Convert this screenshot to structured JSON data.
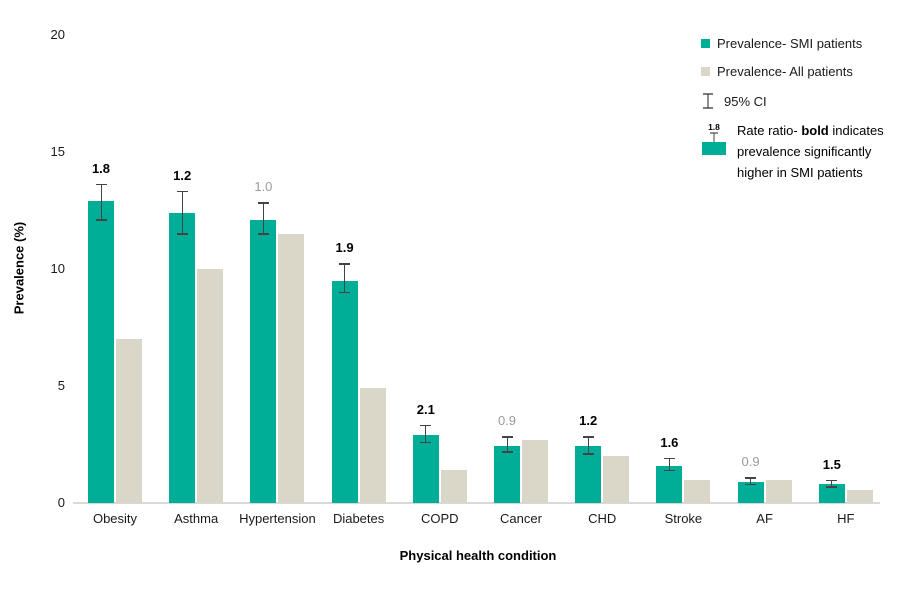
{
  "chart_data": {
    "type": "bar",
    "title": "",
    "xlabel": "Physical health condition",
    "ylabel": "Prevalence (%)",
    "ylim": [
      0,
      20
    ],
    "yticks": [
      0,
      5,
      10,
      15,
      20
    ],
    "grid": false,
    "legend_position": "top-right",
    "categories": [
      "Obesity",
      "Asthma",
      "Hypertension",
      "Diabetes",
      "COPD",
      "Cancer",
      "CHD",
      "Stroke",
      "AF",
      "HF"
    ],
    "series": [
      {
        "name": "Prevalence- SMI patients",
        "color": "#00AD96",
        "values": [
          12.9,
          12.4,
          12.1,
          9.5,
          2.9,
          2.45,
          2.45,
          1.6,
          0.9,
          0.8
        ],
        "ci_low": [
          12.1,
          11.5,
          11.5,
          9.0,
          2.6,
          2.2,
          2.1,
          1.4,
          0.8,
          0.7
        ],
        "ci_high": [
          13.6,
          13.3,
          12.8,
          10.2,
          3.3,
          2.8,
          2.8,
          1.9,
          1.05,
          0.95
        ]
      },
      {
        "name": "Prevalence- All patients",
        "color": "#DAD7C9",
        "values": [
          7.0,
          10.0,
          11.5,
          4.9,
          1.4,
          2.7,
          2.0,
          1.0,
          0.97,
          0.55
        ]
      }
    ],
    "rate_ratios": [
      {
        "label": "1.8",
        "significant": true
      },
      {
        "label": "1.2",
        "significant": true
      },
      {
        "label": "1.0",
        "significant": false
      },
      {
        "label": "1.9",
        "significant": true
      },
      {
        "label": "2.1",
        "significant": true
      },
      {
        "label": "0.9",
        "significant": false
      },
      {
        "label": "1.2",
        "significant": true
      },
      {
        "label": "1.6",
        "significant": true
      },
      {
        "label": "0.9",
        "significant": false
      },
      {
        "label": "1.5",
        "significant": true
      }
    ]
  },
  "legend": {
    "smi": "Prevalence- SMI patients",
    "all": "Prevalence- All patients",
    "ci": "95% CI",
    "ratio_icon_value": "1.8",
    "ratio_text_prefix": "Rate ratio- ",
    "ratio_text_bold": "bold",
    "ratio_text_suffix": " indicates prevalence significantly higher in SMI patients"
  },
  "colors": {
    "smi_bar": "#00AD96",
    "all_bar": "#DAD7C9",
    "error_bar": "#444444",
    "nonsignificant_label": "#9B9B9B",
    "axis_line": "#D9D9D9",
    "text": "#1A1A1A"
  }
}
